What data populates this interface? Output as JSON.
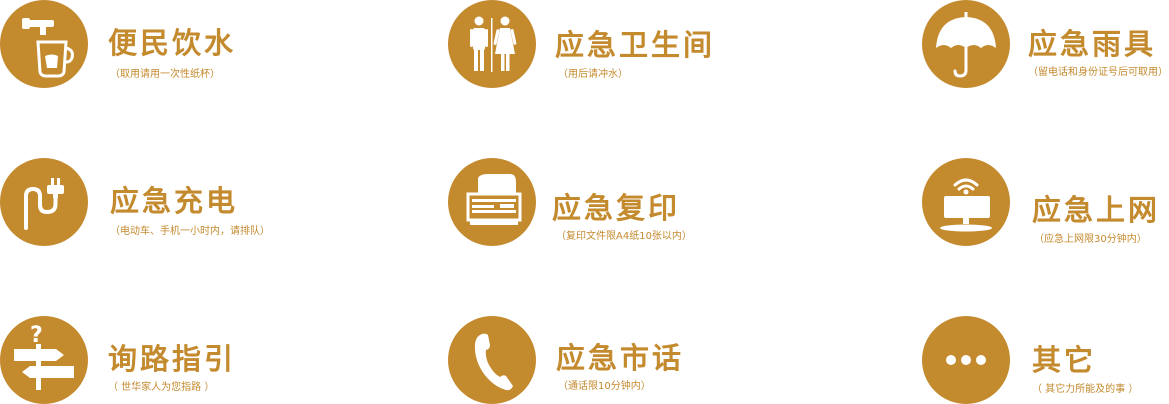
{
  "brand_color": "#C48A2E",
  "services": [
    {
      "icon": "faucet-cup-icon",
      "title": "便民饮水",
      "note": "（取用请用一次性纸杯）"
    },
    {
      "icon": "restroom-icon",
      "title": "应急卫生间",
      "note": "（用后请冲水）"
    },
    {
      "icon": "umbrella-icon",
      "title": "应急雨具",
      "note": "（留电话和身份证号后可取用）"
    },
    {
      "icon": "charging-plug-icon",
      "title": "应急充电",
      "note": "（电动车、手机一小时内，请排队）"
    },
    {
      "icon": "printer-icon",
      "title": "应急复印",
      "note": "（复印文件限A4纸10张以内）"
    },
    {
      "icon": "wifi-monitor-icon",
      "title": "应急上网",
      "note": "（应急上网限30分钟内）"
    },
    {
      "icon": "signpost-question-icon",
      "title": "询路指引",
      "note": "（ 世华家人为您指路 ）"
    },
    {
      "icon": "telephone-icon",
      "title": "应急市话",
      "note": "（通话限10分钟内）"
    },
    {
      "icon": "more-dots-icon",
      "title": "其它",
      "note": "（ 其它力所能及的事 ）"
    }
  ]
}
